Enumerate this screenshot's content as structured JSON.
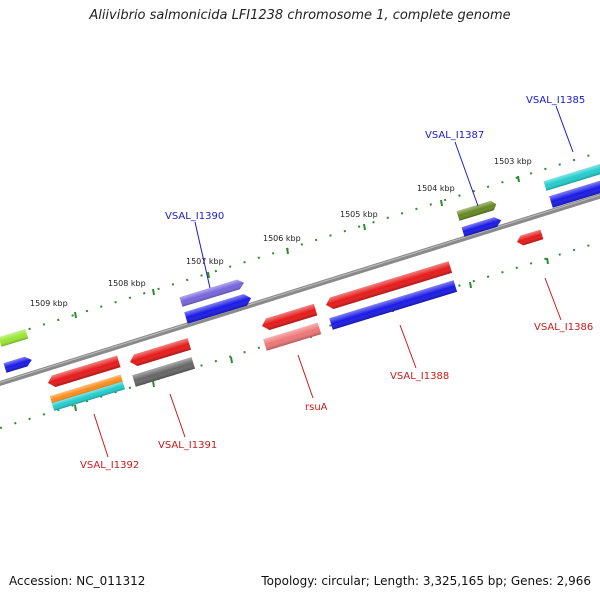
{
  "title": "Aliivibrio salmonicida LFI1238 chromosome 1, complete genome",
  "footer": {
    "accession": "Accession: NC_011312",
    "summary": "Topology: circular; Length: 3,325,165 bp; Genes: 2,966"
  },
  "colors": {
    "backbone": "#8a8a8a",
    "tick": "#2e8b2e",
    "forward_label": "#1a1acc",
    "reverse_label": "#cc1a1a",
    "kbp_label": "#222222"
  },
  "kbp_labels": [
    "1509 kbp",
    "1508 kbp",
    "1507 kbp",
    "1506 kbp",
    "1505 kbp",
    "1504 kbp",
    "1503 kbp"
  ],
  "gene_labels": {
    "vsal_i1385": "VSAL_I1385",
    "vsal_i1387": "VSAL_I1387",
    "vsal_i1390": "VSAL_I1390",
    "vsal_i1386": "VSAL_I1386",
    "vsal_i1388": "VSAL_I1388",
    "rsua": "rsuA",
    "vsal_i1391": "VSAL_I1391",
    "vsal_i1392": "VSAL_I1392"
  },
  "feature_colors": {
    "lime": "#99e633",
    "blue": "#1a1ae6",
    "purple": "#7766dd",
    "olive": "#668822",
    "cyan": "#22cccc",
    "red": "#e61a1a",
    "pink": "#ee7777",
    "gray": "#666666",
    "orange": "#ff8c1a"
  }
}
